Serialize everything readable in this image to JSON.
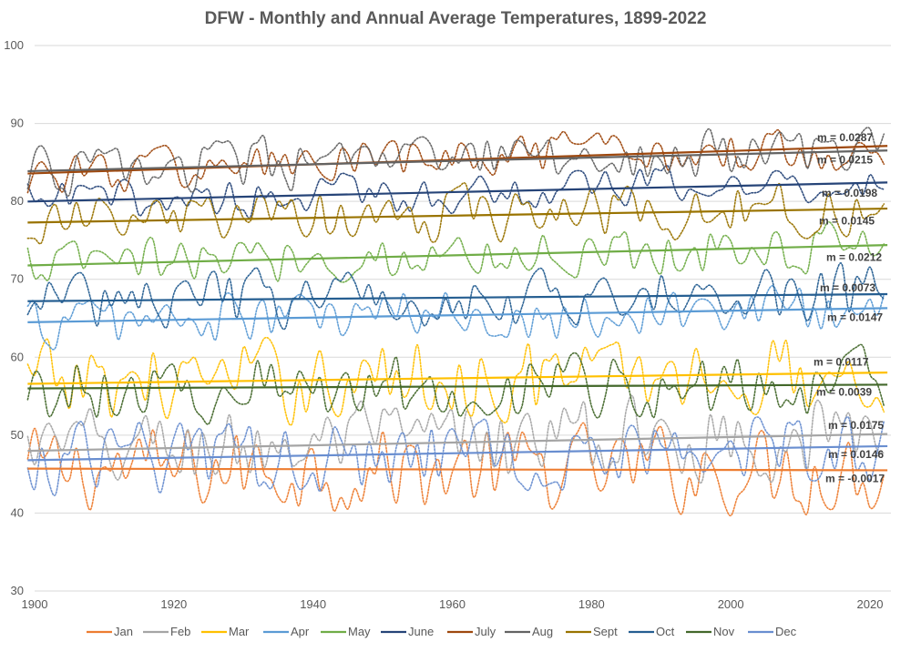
{
  "chart_data": {
    "type": "line",
    "title": "DFW - Monthly and Annual Average Temperatures, 1899-2022",
    "xlabel": "",
    "ylabel": "",
    "xlim": [
      1900,
      2023
    ],
    "ylim": [
      30,
      100
    ],
    "x_ticks": [
      "1900",
      "1920",
      "1940",
      "1960",
      "1980",
      "2000",
      "2020"
    ],
    "y_ticks": [
      "30",
      "40",
      "50",
      "60",
      "70",
      "80",
      "90",
      "100"
    ],
    "grid": "horizontal",
    "legend_position": "bottom",
    "line_style": "dotted, smoothed",
    "trendlines": "linear, solid",
    "series": [
      {
        "name": "Jan",
        "color": "#ED7D31",
        "trend_start": 45.7,
        "slope": -0.0017,
        "slope_label": "m = -0.0017",
        "amplitude": 4.2
      },
      {
        "name": "Feb",
        "color": "#A5A5A5",
        "trend_start": 48.0,
        "slope": 0.0175,
        "slope_label": "m = 0.0175",
        "amplitude": 4.0
      },
      {
        "name": "Mar",
        "color": "#FFC000",
        "trend_start": 56.6,
        "slope": 0.0117,
        "slope_label": "m = 0.0117",
        "amplitude": 4.0
      },
      {
        "name": "Apr",
        "color": "#5B9BD5",
        "trend_start": 64.5,
        "slope": 0.0147,
        "slope_label": "m = 0.0147",
        "amplitude": 2.6
      },
      {
        "name": "May",
        "color": "#70AD47",
        "trend_start": 71.8,
        "slope": 0.0212,
        "slope_label": "m = 0.0212",
        "amplitude": 2.3
      },
      {
        "name": "June",
        "color": "#264478",
        "trend_start": 80.0,
        "slope": 0.0198,
        "slope_label": "m = 0.0198",
        "amplitude": 2.0
      },
      {
        "name": "July",
        "color": "#9E480E",
        "trend_start": 83.6,
        "slope": 0.0287,
        "slope_label": "m = 0.0287",
        "amplitude": 2.2
      },
      {
        "name": "Aug",
        "color": "#636363",
        "trend_start": 83.9,
        "slope": 0.0215,
        "slope_label": "m = 0.0215",
        "amplitude": 2.4
      },
      {
        "name": "Sept",
        "color": "#997300",
        "trend_start": 77.3,
        "slope": 0.0145,
        "slope_label": "m = 0.0145",
        "amplitude": 2.6
      },
      {
        "name": "Oct",
        "color": "#255E91",
        "trend_start": 67.2,
        "slope": 0.0073,
        "slope_label": "m = 0.0073",
        "amplitude": 2.8
      },
      {
        "name": "Nov",
        "color": "#43682B",
        "trend_start": 56.0,
        "slope": 0.0039,
        "slope_label": "m = 0.0039",
        "amplitude": 3.2
      },
      {
        "name": "Dec",
        "color": "#698ED0",
        "trend_start": 46.8,
        "slope": 0.0146,
        "slope_label": "m = 0.0146",
        "amplitude": 3.6
      }
    ],
    "annotations_order_top_to_bottom": [
      "m = 0.0287",
      "m = 0.0215",
      "m = 0.0198",
      "m = 0.0145",
      "m = 0.0212",
      "m = 0.0073",
      "m = 0.0147",
      "m = 0.0117",
      "m = 0.0039",
      "m = 0.0175",
      "m = 0.0146",
      "m = -0.0017"
    ],
    "year_range": [
      1899,
      2022
    ]
  }
}
